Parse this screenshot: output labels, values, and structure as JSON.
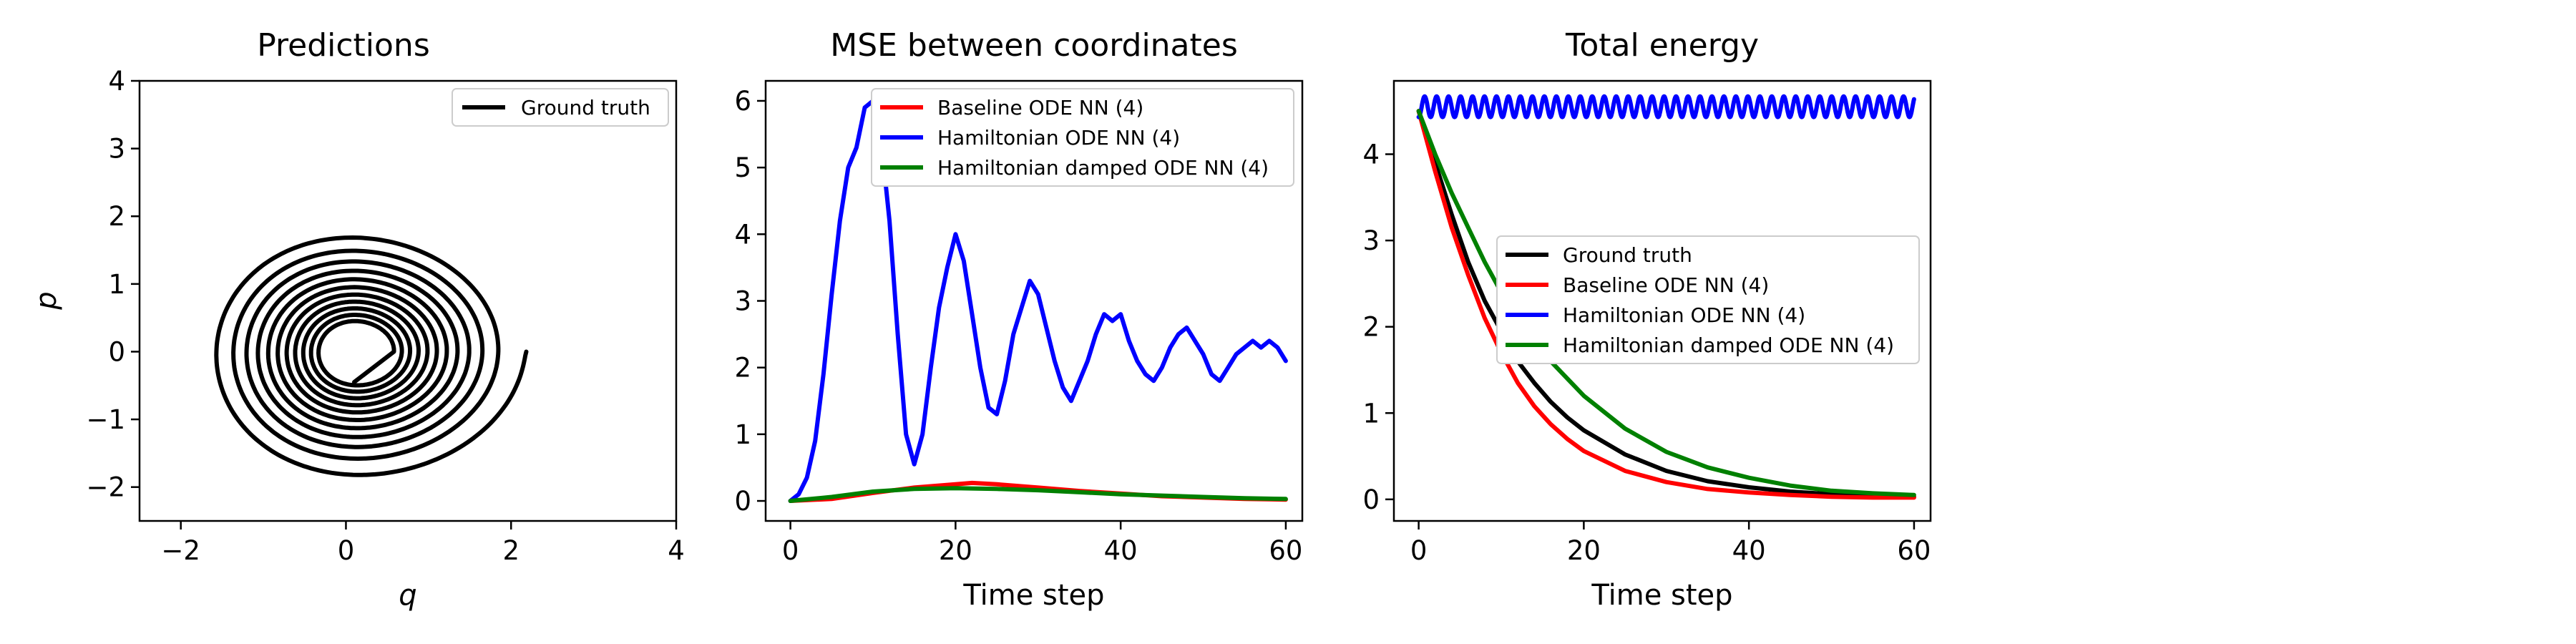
{
  "colors": {
    "ground_truth": "#000000",
    "baseline": "#ff0000",
    "hamiltonian": "#0000ff",
    "damped": "#008000"
  },
  "chart_data": [
    {
      "type": "line",
      "title": "Predictions",
      "xlabel": "q",
      "ylabel": "p",
      "xlim": [
        -2.5,
        4
      ],
      "ylim": [
        -2.5,
        4
      ],
      "xticks": [
        -2,
        0,
        2,
        4
      ],
      "yticks": [
        -2,
        -1,
        0,
        1,
        2,
        3,
        4
      ],
      "xtick_labels": [
        "−2",
        "0",
        "2",
        "4"
      ],
      "ytick_labels": [
        "−2",
        "−1",
        "0",
        "1",
        "2",
        "3",
        "4"
      ],
      "legend_position": "upper right",
      "series": [
        {
          "name": "Ground truth",
          "color": "ground_truth",
          "kind": "damped spiral",
          "start": [
            2.1,
            0.0
          ],
          "end": [
            0.1,
            -0.45
          ],
          "outer_extent": {
            "q": [
              -1.85,
              2.1
            ],
            "p": [
              -2.0,
              1.9
            ]
          }
        }
      ]
    },
    {
      "type": "line",
      "title": "MSE between coordinates",
      "xlabel": "Time step",
      "ylabel": "",
      "xlim": [
        -3,
        62
      ],
      "ylim": [
        -0.3,
        6.3
      ],
      "xticks": [
        0,
        20,
        40,
        60
      ],
      "yticks": [
        0,
        1,
        2,
        3,
        4,
        5,
        6
      ],
      "xtick_labels": [
        "0",
        "20",
        "40",
        "60"
      ],
      "ytick_labels": [
        "0",
        "1",
        "2",
        "3",
        "4",
        "5",
        "6"
      ],
      "legend_position": "upper right",
      "series": [
        {
          "name": "Baseline ODE NN (4)",
          "color": "baseline",
          "x": [
            0,
            5,
            10,
            15,
            20,
            22,
            25,
            30,
            35,
            40,
            45,
            50,
            55,
            60
          ],
          "y": [
            0.0,
            0.03,
            0.12,
            0.2,
            0.25,
            0.27,
            0.25,
            0.2,
            0.15,
            0.11,
            0.07,
            0.05,
            0.03,
            0.02
          ]
        },
        {
          "name": "Hamiltonian ODE NN (4)",
          "color": "hamiltonian",
          "x": [
            0,
            1,
            2,
            3,
            4,
            5,
            6,
            7,
            8,
            9,
            10,
            11,
            12,
            13,
            14,
            15,
            16,
            17,
            18,
            19,
            20,
            21,
            22,
            23,
            24,
            25,
            26,
            27,
            28,
            29,
            30,
            31,
            32,
            33,
            34,
            35,
            36,
            37,
            38,
            39,
            40,
            41,
            42,
            43,
            44,
            45,
            46,
            47,
            48,
            49,
            50,
            51,
            52,
            53,
            54,
            55,
            56,
            57,
            58,
            59,
            60
          ],
          "y": [
            0.0,
            0.1,
            0.35,
            0.9,
            1.9,
            3.1,
            4.2,
            5.0,
            5.3,
            5.9,
            6.0,
            5.4,
            4.2,
            2.5,
            1.0,
            0.55,
            1.0,
            2.0,
            2.9,
            3.5,
            4.0,
            3.6,
            2.8,
            2.0,
            1.4,
            1.3,
            1.8,
            2.5,
            2.9,
            3.3,
            3.1,
            2.6,
            2.1,
            1.7,
            1.5,
            1.8,
            2.1,
            2.5,
            2.8,
            2.7,
            2.8,
            2.4,
            2.1,
            1.9,
            1.8,
            2.0,
            2.3,
            2.5,
            2.6,
            2.4,
            2.2,
            1.9,
            1.8,
            2.0,
            2.2,
            2.3,
            2.4,
            2.3,
            2.4,
            2.3,
            2.1
          ]
        },
        {
          "name": "Hamiltonian damped ODE NN (4)",
          "color": "damped",
          "x": [
            0,
            5,
            10,
            15,
            20,
            25,
            30,
            35,
            40,
            45,
            50,
            55,
            60
          ],
          "y": [
            0.0,
            0.06,
            0.14,
            0.18,
            0.19,
            0.18,
            0.16,
            0.13,
            0.1,
            0.08,
            0.06,
            0.04,
            0.03
          ]
        }
      ]
    },
    {
      "type": "line",
      "title": "Total energy",
      "xlabel": "Time step",
      "ylabel": "",
      "xlim": [
        -3,
        62
      ],
      "ylim": [
        -0.25,
        4.85
      ],
      "xticks": [
        0,
        20,
        40,
        60
      ],
      "yticks": [
        0,
        1,
        2,
        3,
        4
      ],
      "xtick_labels": [
        "0",
        "20",
        "40",
        "60"
      ],
      "ytick_labels": [
        "0",
        "1",
        "2",
        "3",
        "4"
      ],
      "legend_position": "center right",
      "series": [
        {
          "name": "Ground truth",
          "color": "ground_truth",
          "x": [
            0,
            2,
            4,
            6,
            8,
            10,
            12,
            14,
            16,
            18,
            20,
            25,
            30,
            35,
            40,
            45,
            50,
            55,
            60
          ],
          "y": [
            4.5,
            3.9,
            3.3,
            2.75,
            2.3,
            1.95,
            1.6,
            1.35,
            1.13,
            0.95,
            0.8,
            0.52,
            0.33,
            0.21,
            0.14,
            0.09,
            0.06,
            0.04,
            0.03
          ]
        },
        {
          "name": "Baseline ODE NN (4)",
          "color": "baseline",
          "x": [
            0,
            2,
            4,
            6,
            8,
            10,
            12,
            14,
            16,
            18,
            20,
            25,
            30,
            35,
            40,
            45,
            50,
            55,
            60
          ],
          "y": [
            4.5,
            3.8,
            3.15,
            2.6,
            2.1,
            1.7,
            1.35,
            1.08,
            0.87,
            0.7,
            0.56,
            0.33,
            0.2,
            0.12,
            0.08,
            0.05,
            0.03,
            0.02,
            0.02
          ]
        },
        {
          "name": "Hamiltonian ODE NN (4)",
          "color": "hamiltonian",
          "kind": "oscillation",
          "mean": 4.55,
          "amplitude": 0.12,
          "period": 1.45
        },
        {
          "name": "Hamiltonian damped ODE NN (4)",
          "color": "damped",
          "x": [
            0,
            2,
            4,
            6,
            8,
            10,
            12,
            14,
            16,
            18,
            20,
            25,
            30,
            35,
            40,
            45,
            50,
            55,
            60
          ],
          "y": [
            4.5,
            4.0,
            3.55,
            3.15,
            2.75,
            2.4,
            2.1,
            1.85,
            1.6,
            1.4,
            1.2,
            0.82,
            0.55,
            0.37,
            0.25,
            0.16,
            0.1,
            0.07,
            0.05
          ]
        }
      ]
    }
  ]
}
